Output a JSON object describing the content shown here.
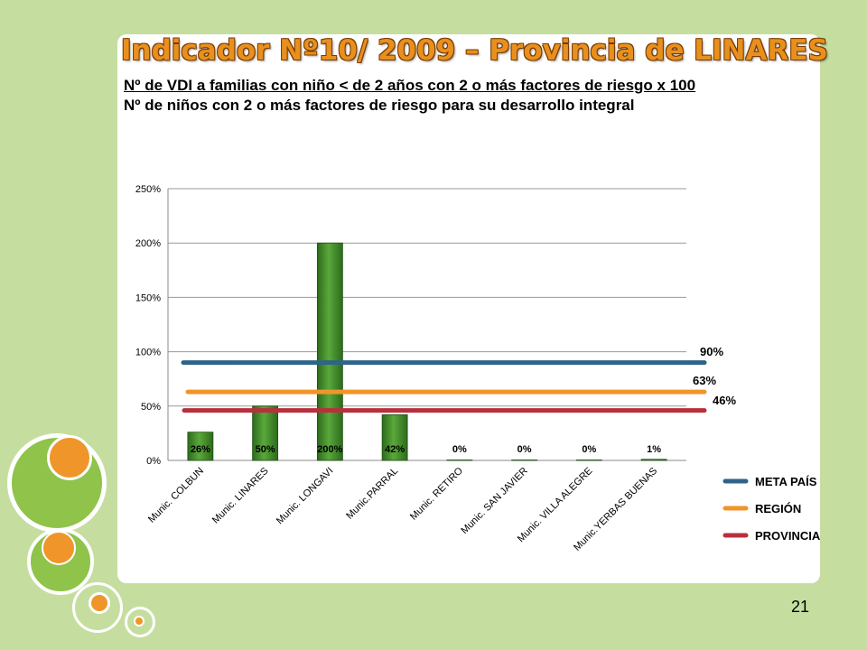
{
  "title": "Indicador Nº10/ 2009 – Provincia de LINARES",
  "formula": {
    "numerator": "Nº de VDI a familias con niño < de 2 años con 2 o más factores de riesgo x 100",
    "denominator": "Nº de niños con 2 o más  factores de riesgo para su desarrollo integral"
  },
  "page_number": "21",
  "colors": {
    "bar": "#3f8a2a",
    "meta_pais": "#2e6488",
    "region": "#f0952a",
    "provincia": "#b8303c",
    "title": "#e8901e",
    "background": "#c5dea0"
  },
  "chart_data": {
    "type": "bar",
    "categories": [
      "Munic. COLBUN",
      "Munic. LINARES",
      "Munic. LONGAVI",
      "Munic.PARRAL",
      "Munic. RETIRO",
      "Munic. SAN JAVIER",
      "Munic. VILLA ALEGRE",
      "Munic.YERBAS BUENAS"
    ],
    "values": [
      26,
      50,
      200,
      42,
      0,
      0,
      0,
      1
    ],
    "data_labels": [
      "26%",
      "50%",
      "200%",
      "42%",
      "0%",
      "0%",
      "0%",
      "1%"
    ],
    "ylim": [
      0,
      250
    ],
    "yticks": [
      0,
      50,
      100,
      150,
      200,
      250
    ],
    "ytick_labels": [
      "0%",
      "50%",
      "100%",
      "150%",
      "200%",
      "250%"
    ],
    "grid": true,
    "reference_lines": [
      {
        "name": "META PAÍS",
        "value": 90,
        "label": "90%",
        "color": "#2e6488"
      },
      {
        "name": "REGIÓN",
        "value": 63,
        "label": "63%",
        "color": "#f0952a"
      },
      {
        "name": "PROVINCIA",
        "value": 46,
        "label": "46%",
        "color": "#b8303c"
      }
    ],
    "legend_position": "right"
  }
}
